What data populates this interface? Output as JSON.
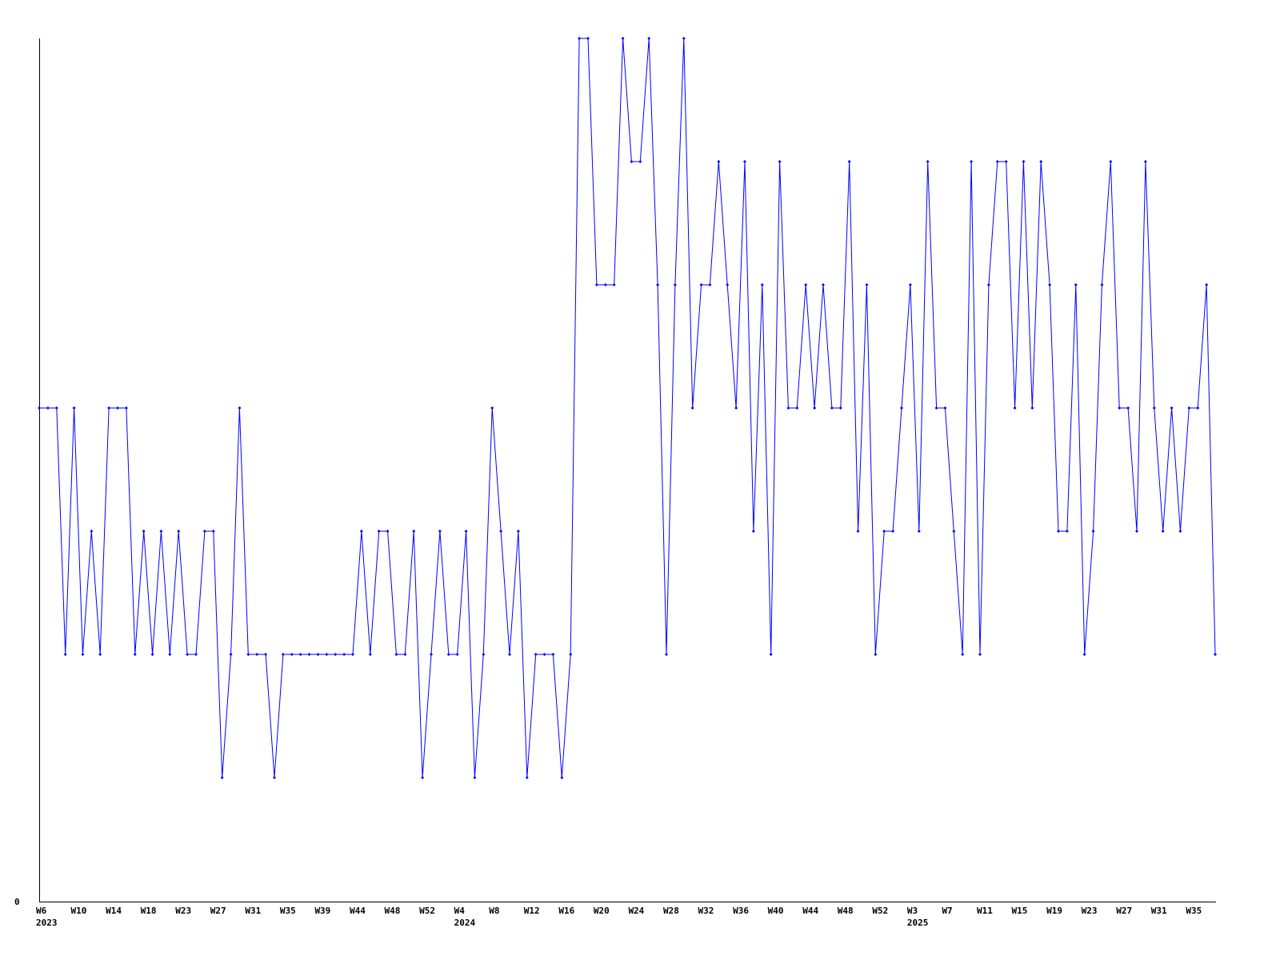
{
  "chart_data": {
    "type": "line",
    "title": "",
    "xlabel": "",
    "ylabel": "",
    "ylim": [
      0,
      7
    ],
    "y_tick_labels": [
      "0"
    ],
    "grid": false,
    "line_color": "#0000ff",
    "x_ticks": [
      {
        "index": 0,
        "label": "W6",
        "year": "2023"
      },
      {
        "index": 4,
        "label": "W10"
      },
      {
        "index": 8,
        "label": "W14"
      },
      {
        "index": 12,
        "label": "W18"
      },
      {
        "index": 16,
        "label": "W23"
      },
      {
        "index": 20,
        "label": "W27"
      },
      {
        "index": 24,
        "label": "W31"
      },
      {
        "index": 28,
        "label": "W35"
      },
      {
        "index": 32,
        "label": "W39"
      },
      {
        "index": 36,
        "label": "W44"
      },
      {
        "index": 40,
        "label": "W48"
      },
      {
        "index": 44,
        "label": "W52"
      },
      {
        "index": 48,
        "label": "W4",
        "year": "2024"
      },
      {
        "index": 52,
        "label": "W8"
      },
      {
        "index": 56,
        "label": "W12"
      },
      {
        "index": 60,
        "label": "W16"
      },
      {
        "index": 64,
        "label": "W20"
      },
      {
        "index": 68,
        "label": "W24"
      },
      {
        "index": 72,
        "label": "W28"
      },
      {
        "index": 76,
        "label": "W32"
      },
      {
        "index": 80,
        "label": "W36"
      },
      {
        "index": 84,
        "label": "W40"
      },
      {
        "index": 88,
        "label": "W44"
      },
      {
        "index": 92,
        "label": "W48"
      },
      {
        "index": 96,
        "label": "W52"
      },
      {
        "index": 100,
        "label": "W3",
        "year": "2025"
      },
      {
        "index": 104,
        "label": "W7"
      },
      {
        "index": 108,
        "label": "W11"
      },
      {
        "index": 112,
        "label": "W15"
      },
      {
        "index": 116,
        "label": "W19"
      },
      {
        "index": 120,
        "label": "W23"
      },
      {
        "index": 124,
        "label": "W27"
      },
      {
        "index": 128,
        "label": "W31"
      },
      {
        "index": 132,
        "label": "W35"
      }
    ],
    "values": [
      4,
      4,
      4,
      2,
      4,
      2,
      3,
      2,
      4,
      4,
      4,
      2,
      3,
      2,
      3,
      2,
      3,
      2,
      2,
      3,
      3,
      1,
      2,
      4,
      2,
      2,
      2,
      1,
      2,
      2,
      2,
      2,
      2,
      2,
      2,
      2,
      2,
      3,
      2,
      3,
      3,
      2,
      2,
      3,
      1,
      2,
      3,
      2,
      2,
      3,
      1,
      2,
      4,
      3,
      2,
      3,
      1,
      2,
      2,
      2,
      1,
      2,
      7,
      7,
      5,
      5,
      5,
      7,
      6,
      6,
      7,
      5,
      2,
      5,
      7,
      4,
      5,
      5,
      6,
      5,
      4,
      6,
      3,
      5,
      2,
      6,
      4,
      4,
      5,
      4,
      5,
      4,
      4,
      6,
      3,
      5,
      2,
      3,
      3,
      4,
      5,
      3,
      6,
      4,
      4,
      3,
      2,
      6,
      2,
      5,
      6,
      6,
      4,
      6,
      4,
      6,
      5,
      3,
      3,
      5,
      2,
      3,
      5,
      6,
      4,
      4,
      3,
      6,
      4,
      3,
      4,
      3,
      4,
      4,
      5,
      2
    ]
  }
}
